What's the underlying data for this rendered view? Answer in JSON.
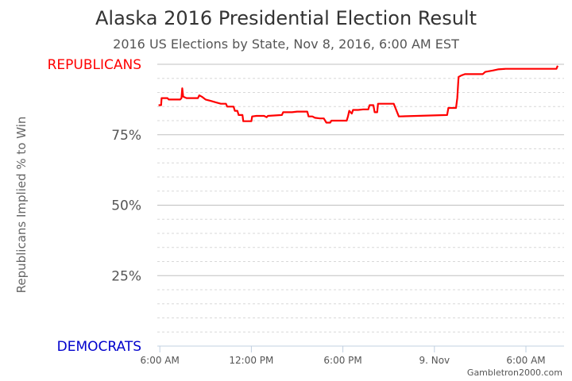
{
  "chart_data": {
    "type": "line",
    "title": "Alaska 2016 Presidential Election Result",
    "subtitle": "2016 US Elections by State, Nov 8, 2016, 6:00 AM EST",
    "ylabel": "Republicans Implied % to Win",
    "ylim": [
      0,
      100
    ],
    "xlim": [
      "2016-11-08T05:50",
      "2016-11-09T08:30"
    ],
    "y_ticks": [
      {
        "value": 25,
        "label": "25%"
      },
      {
        "value": 50,
        "label": "50%"
      },
      {
        "value": 75,
        "label": "75%"
      }
    ],
    "y_end_labels": {
      "top": {
        "value": 100,
        "label": "REPUBLICANS",
        "color": "#ff0000"
      },
      "bottom": {
        "value": 0,
        "label": "DEMOCRATS",
        "color": "#0000cc"
      }
    },
    "x_ticks": [
      {
        "value": "2016-11-08T06:00",
        "label": "6:00 AM"
      },
      {
        "value": "2016-11-08T12:00",
        "label": "12:00 PM"
      },
      {
        "value": "2016-11-08T18:00",
        "label": "6:00 PM"
      },
      {
        "value": "2016-11-09T00:00",
        "label": "9. Nov"
      },
      {
        "value": "2016-11-09T06:00",
        "label": "6:00 AM"
      }
    ],
    "grid": true,
    "series": [
      {
        "color": "#ff0000",
        "points": [
          [
            "2016-11-08T05:55",
            85.5
          ],
          [
            "2016-11-08T06:05",
            85.5
          ],
          [
            "2016-11-08T06:07",
            88
          ],
          [
            "2016-11-08T06:30",
            88
          ],
          [
            "2016-11-08T06:35",
            87.5
          ],
          [
            "2016-11-08T07:00",
            87.5
          ],
          [
            "2016-11-08T07:20",
            87.5
          ],
          [
            "2016-11-08T07:25",
            88
          ],
          [
            "2016-11-08T07:28",
            91.5
          ],
          [
            "2016-11-08T07:32",
            88.5
          ],
          [
            "2016-11-08T07:45",
            88
          ],
          [
            "2016-11-08T08:30",
            88
          ],
          [
            "2016-11-08T08:35",
            89
          ],
          [
            "2016-11-08T08:45",
            88.5
          ],
          [
            "2016-11-08T09:00",
            87.5
          ],
          [
            "2016-11-08T09:20",
            87
          ],
          [
            "2016-11-08T09:40",
            86.5
          ],
          [
            "2016-11-08T10:00",
            86
          ],
          [
            "2016-11-08T10:20",
            86
          ],
          [
            "2016-11-08T10:25",
            85
          ],
          [
            "2016-11-08T10:50",
            85
          ],
          [
            "2016-11-08T10:55",
            83.5
          ],
          [
            "2016-11-08T11:05",
            83.5
          ],
          [
            "2016-11-08T11:10",
            82
          ],
          [
            "2016-11-08T11:25",
            82
          ],
          [
            "2016-11-08T11:28",
            79.8
          ],
          [
            "2016-11-08T12:00",
            79.8
          ],
          [
            "2016-11-08T12:03",
            81.5
          ],
          [
            "2016-11-08T12:20",
            81.7
          ],
          [
            "2016-11-08T12:50",
            81.7
          ],
          [
            "2016-11-08T13:00",
            81.2
          ],
          [
            "2016-11-08T13:05",
            81.7
          ],
          [
            "2016-11-08T14:00",
            82
          ],
          [
            "2016-11-08T14:05",
            83
          ],
          [
            "2016-11-08T14:40",
            83
          ],
          [
            "2016-11-08T15:00",
            83.2
          ],
          [
            "2016-11-08T15:40",
            83.2
          ],
          [
            "2016-11-08T15:45",
            81.5
          ],
          [
            "2016-11-08T16:00",
            81.5
          ],
          [
            "2016-11-08T16:10",
            81
          ],
          [
            "2016-11-08T16:30",
            80.8
          ],
          [
            "2016-11-08T16:45",
            80.8
          ],
          [
            "2016-11-08T16:55",
            79.3
          ],
          [
            "2016-11-08T17:10",
            79.3
          ],
          [
            "2016-11-08T17:15",
            80
          ],
          [
            "2016-11-08T18:15",
            80
          ],
          [
            "2016-11-08T18:20",
            81.5
          ],
          [
            "2016-11-08T18:25",
            83.5
          ],
          [
            "2016-11-08T18:30",
            83
          ],
          [
            "2016-11-08T18:35",
            82.5
          ],
          [
            "2016-11-08T18:40",
            83.8
          ],
          [
            "2016-11-08T19:00",
            83.8
          ],
          [
            "2016-11-08T19:20",
            84
          ],
          [
            "2016-11-08T19:40",
            84
          ],
          [
            "2016-11-08T19:45",
            85.5
          ],
          [
            "2016-11-08T20:00",
            85.5
          ],
          [
            "2016-11-08T20:05",
            83
          ],
          [
            "2016-11-08T20:15",
            83
          ],
          [
            "2016-11-08T20:18",
            86
          ],
          [
            "2016-11-08T21:20",
            86
          ],
          [
            "2016-11-08T21:40",
            81.5
          ],
          [
            "2016-11-09T00:50",
            82
          ],
          [
            "2016-11-09T00:55",
            84.5
          ],
          [
            "2016-11-09T01:25",
            84.5
          ],
          [
            "2016-11-09T01:30",
            88
          ],
          [
            "2016-11-09T01:35",
            95.5
          ],
          [
            "2016-11-09T01:45",
            96
          ],
          [
            "2016-11-09T02:00",
            96.5
          ],
          [
            "2016-11-09T03:10",
            96.5
          ],
          [
            "2016-11-09T03:20",
            97.3
          ],
          [
            "2016-11-09T03:50",
            97.8
          ],
          [
            "2016-11-09T04:10",
            98.2
          ],
          [
            "2016-11-09T04:40",
            98.4
          ],
          [
            "2016-11-09T08:00",
            98.4
          ],
          [
            "2016-11-09T08:05",
            99.5
          ]
        ]
      }
    ],
    "credit": "Gambletron2000.com"
  }
}
